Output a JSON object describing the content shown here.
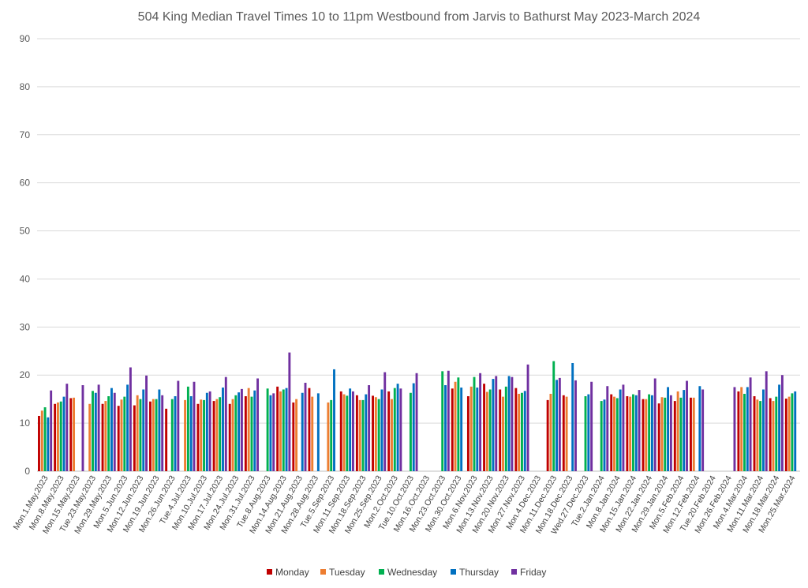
{
  "chart_data": {
    "type": "bar",
    "title": "504 King Median Travel Times 10 to 11pm Westbound from Jarvis to Bathurst May 2023-March 2024",
    "xlabel": "",
    "ylabel": "",
    "ylim": [
      0,
      90
    ],
    "yticks": [
      0,
      10,
      20,
      30,
      40,
      50,
      60,
      70,
      80,
      90
    ],
    "grid": true,
    "legend_position": "bottom",
    "categories": [
      "Mon.1.May.2023",
      "Mon.8.May.2023",
      "Mon.15.May.2023",
      "Tue.23.May.2023",
      "Mon.29.May.2023",
      "Mon.5.Jun.2023",
      "Mon.12.Jun.2023",
      "Mon.19.Jun.2023",
      "Mon.26.Jun.2023",
      "Tue.4.Jul.2023",
      "Mon.10.Jul.2023",
      "Mon.17.Jul.2023",
      "Mon.24.Jul.2023",
      "Mon.31.Jul.2023",
      "Tue.8.Aug.2023",
      "Mon.14.Aug.2023",
      "Mon.21.Aug.2023",
      "Mon.28.Aug.2023",
      "Tue.5.Sep.2023",
      "Mon.11.Sep.2023",
      "Mon.18.Sep.2023",
      "Mon.25.Sep.2023",
      "Mon.2.Oct.2023",
      "Tue.10.Oct.2023",
      "Mon.16.Oct.2023",
      "Mon.23.Oct.2023",
      "Mon.30.Oct.2023",
      "Mon.6.Nov.2023",
      "Mon.13.Nov.2023",
      "Mon.20.Nov.2023",
      "Mon.27.Nov.2023",
      "Mon.4.Dec.2023",
      "Mon.11.Dec.2023",
      "Mon.18.Dec.2023",
      "Wed.27.Dec.2023",
      "Tue.2.Jan.2024",
      "Mon.8.Jan.2024",
      "Mon.15.Jan.2024",
      "Mon.22.Jan.2024",
      "Mon.29.Jan.2024",
      "Mon.5.Feb.2024",
      "Mon.12.Feb.2024",
      "Tue.20.Feb.2024",
      "Mon.26.Feb.2024",
      "Mon.4.Mar.2024",
      "Mon.11.Mar.2024",
      "Mon.18.Mar.2024",
      "Mon.25.Mar.2024"
    ],
    "series": [
      {
        "name": "Monday",
        "color": "#C00000",
        "values": [
          11.5,
          14,
          15.2,
          null,
          14,
          13.6,
          13.7,
          14.5,
          13,
          null,
          14,
          14.6,
          14,
          15.6,
          null,
          17.6,
          14.3,
          17.3,
          null,
          16.6,
          15.8,
          15.7,
          16.6,
          null,
          null,
          null,
          17.2,
          15.6,
          18.2,
          17,
          17.3,
          null,
          14.8,
          15.8,
          null,
          null,
          16,
          15.6,
          15,
          14.1,
          14.6,
          15.3,
          null,
          null,
          16.6,
          15.6,
          15.2,
          15.1
        ]
      },
      {
        "name": "Tuesday",
        "color": "#ED7D31",
        "values": [
          12.6,
          14.3,
          15.3,
          14,
          14.6,
          14.9,
          15.8,
          15,
          null,
          14.8,
          14.9,
          15,
          15,
          17.3,
          null,
          16.6,
          15,
          15.5,
          14.3,
          16,
          14.8,
          15.4,
          15,
          null,
          null,
          null,
          18.6,
          17.6,
          16.5,
          15.5,
          16.1,
          null,
          16.1,
          15.5,
          null,
          null,
          15.5,
          15.5,
          15,
          15.4,
          16.6,
          15.3,
          null,
          null,
          17.5,
          14.9,
          14.6,
          15.5
        ]
      },
      {
        "name": "Wednesday",
        "color": "#00B050",
        "values": [
          13.3,
          14.5,
          null,
          16.7,
          15.6,
          15.5,
          15,
          15,
          15,
          17.6,
          14.8,
          15.4,
          15.8,
          15.5,
          17.2,
          17,
          null,
          null,
          14.8,
          15.7,
          14.8,
          15,
          17.3,
          16.3,
          null,
          20.8,
          19.5,
          19.6,
          17,
          17.6,
          16.3,
          null,
          22.9,
          null,
          15.6,
          14.6,
          15.2,
          16,
          16,
          15.3,
          15.3,
          null,
          null,
          null,
          16.1,
          14.6,
          15.5,
          16.2
        ]
      },
      {
        "name": "Thursday",
        "color": "#0070C0",
        "values": [
          11.2,
          15.5,
          null,
          16.3,
          17.3,
          18,
          17,
          17,
          15.6,
          15.6,
          16.3,
          17.4,
          16.4,
          16.8,
          15.8,
          17.3,
          16.3,
          16.2,
          21.2,
          17.2,
          16,
          17,
          18.2,
          18.3,
          null,
          17.9,
          17.4,
          17.4,
          19.2,
          19.8,
          16.7,
          null,
          19,
          22.5,
          16,
          14.9,
          17,
          15.8,
          15.8,
          17.5,
          16.9,
          17.7,
          null,
          null,
          17.5,
          17,
          18,
          16.6
        ]
      },
      {
        "name": "Friday",
        "color": "#7030A0",
        "values": [
          16.8,
          18.2,
          17.9,
          18,
          16.3,
          21.6,
          19.9,
          15.8,
          18.8,
          18.6,
          16.6,
          19.6,
          17.1,
          19.3,
          16.2,
          24.7,
          18.4,
          null,
          null,
          16.6,
          17.9,
          20.6,
          17.2,
          20.4,
          null,
          20.9,
          null,
          20.4,
          19.8,
          19.6,
          22.2,
          null,
          19.4,
          18.9,
          18.6,
          17.7,
          18,
          16.9,
          19.3,
          15.8,
          18.8,
          17,
          null,
          17.5,
          19.5,
          20.8,
          20,
          null
        ]
      }
    ]
  }
}
